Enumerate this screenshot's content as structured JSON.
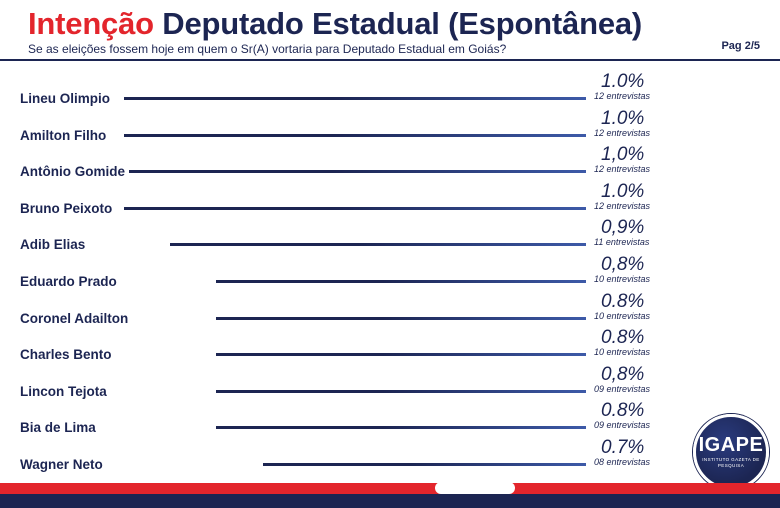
{
  "header": {
    "title_part1": "Intenção",
    "title_part2": "Deputado Estadual (Espontânea)",
    "subtitle": "Se as eleições fossem hoje em quem o Sr(A) vortaria para Deputado Estadual em Goiás?",
    "page": "Pag 2/5"
  },
  "colors": {
    "accent_red": "#e3252c",
    "brand_navy": "#1c2552",
    "bar_end": "#3d5aa8"
  },
  "logo": {
    "text": "IGAPE",
    "subtitle": "INSTITUTO GAZETA DE PESQUISA"
  },
  "chart_data": {
    "type": "bar",
    "orientation": "horizontal",
    "title": "Intenção Deputado Estadual (Espontânea)",
    "categories": [
      "Lineu Olimpio",
      "Amilton Filho",
      "Antônio Gomide",
      "Bruno Peixoto",
      "Adib Elias",
      "Eduardo Prado",
      "Coronel Adailton",
      "Charles Bento",
      "Lincon Tejota",
      "Bia de Lima",
      "Wagner Neto"
    ],
    "values": [
      1.0,
      1.0,
      1.0,
      1.0,
      0.9,
      0.8,
      0.8,
      0.8,
      0.8,
      0.8,
      0.7
    ],
    "value_labels": [
      "1.0%",
      "1.0%",
      "1,0%",
      "1.0%",
      "0,9%",
      "0,8%",
      "0.8%",
      "0.8%",
      "0,8%",
      "0.8%",
      "0.7%"
    ],
    "count_labels": [
      "12 entrevistas",
      "12 entrevistas",
      "12 entrevistas",
      "12 entrevistas",
      "11 entrevistas",
      "10 entrevistas",
      "10 entrevistas",
      "10 entrevistas",
      "09 entrevistas",
      "09 entrevistas",
      "08 entrevistas"
    ],
    "grid": false,
    "legend": "none"
  }
}
